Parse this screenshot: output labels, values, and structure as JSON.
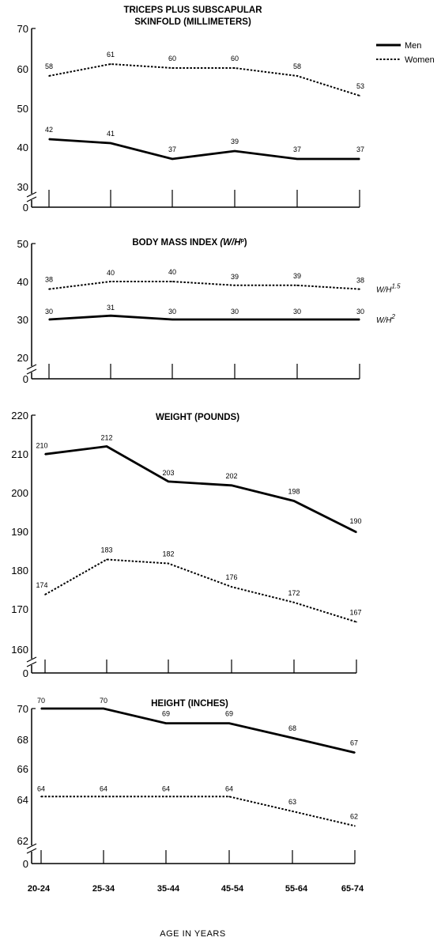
{
  "legend": {
    "men": "Men",
    "women": "Women"
  },
  "x_axis_title": "AGE IN YEARS",
  "categories": [
    "20-24",
    "25-34",
    "35-44",
    "45-54",
    "55-64",
    "65-74"
  ],
  "colors": {
    "lines": "#000000",
    "background": "#ffffff"
  },
  "chart_data": [
    {
      "type": "line",
      "title_lines": [
        "TRICEPS PLUS SUBSCAPULAR",
        "SKINFOLD (MILLIMETERS)"
      ],
      "categories": [
        "20-24",
        "25-34",
        "35-44",
        "45-54",
        "55-64",
        "65-74"
      ],
      "yticks": [
        "70",
        "60",
        "50",
        "40",
        "30",
        "0"
      ],
      "axis_break": true,
      "series": [
        {
          "name": "Men",
          "style": "solid",
          "values": [
            42,
            41,
            37,
            39,
            37,
            37
          ]
        },
        {
          "name": "Women",
          "style": "dotted",
          "values": [
            58,
            61,
            60,
            60,
            58,
            53
          ]
        }
      ],
      "legend_position": "top-right"
    },
    {
      "type": "line",
      "title_text": "BODY MASS INDEX",
      "title_formula": {
        "base": "(W/H",
        "sup": "p",
        "close": ")"
      },
      "categories": [
        "20-24",
        "25-34",
        "35-44",
        "45-54",
        "55-64",
        "65-74"
      ],
      "yticks": [
        "50",
        "40",
        "30",
        "20",
        "0"
      ],
      "axis_break": true,
      "series": [
        {
          "name": "Women",
          "style": "dotted",
          "values": [
            38,
            40,
            40,
            39,
            39,
            38
          ],
          "label": {
            "base": "W/H",
            "sup": "1.5"
          }
        },
        {
          "name": "Men",
          "style": "solid",
          "values": [
            30,
            31,
            30,
            30,
            30,
            30
          ],
          "label": {
            "base": "W/H",
            "sup": "2"
          }
        }
      ]
    },
    {
      "type": "line",
      "title_lines": [
        "WEIGHT (POUNDS)"
      ],
      "categories": [
        "20-24",
        "25-34",
        "35-44",
        "45-54",
        "55-64",
        "65-74"
      ],
      "yticks": [
        "220",
        "210",
        "200",
        "190",
        "180",
        "170",
        "160",
        "0"
      ],
      "axis_break": true,
      "series": [
        {
          "name": "Men",
          "style": "solid",
          "values": [
            210,
            212,
            203,
            202,
            198,
            190
          ]
        },
        {
          "name": "Women",
          "style": "dotted",
          "values": [
            174,
            183,
            182,
            176,
            172,
            167
          ]
        }
      ]
    },
    {
      "type": "line",
      "title_lines": [
        "HEIGHT (INCHES)"
      ],
      "categories": [
        "20-24",
        "25-34",
        "35-44",
        "45-54",
        "55-64",
        "65-74"
      ],
      "yticks": [
        "70",
        "68",
        "66",
        "64",
        "62",
        "0"
      ],
      "axis_break": true,
      "series": [
        {
          "name": "Men",
          "style": "solid",
          "values": [
            70,
            70,
            69,
            69,
            68,
            67
          ]
        },
        {
          "name": "Women",
          "style": "dotted",
          "values": [
            64,
            64,
            64,
            64,
            63,
            62
          ]
        }
      ]
    }
  ]
}
